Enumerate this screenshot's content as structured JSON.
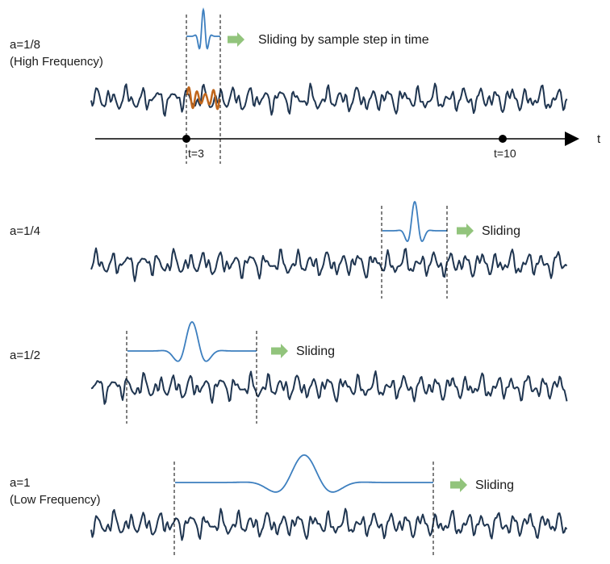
{
  "colors": {
    "signal": "#1f3550",
    "wavelet": "#3d7fbf",
    "highlight": "#c0661c",
    "arrow": "#92c47c",
    "axis": "#000000",
    "guide": "#000000"
  },
  "icons": {
    "arrow": "right-block-arrow-icon",
    "time_marker": "dot-marker-icon",
    "axis_arrow": "arrowhead-icon"
  },
  "axis": {
    "label": "t",
    "markers": [
      {
        "label": "t=3"
      },
      {
        "label": "t=10"
      }
    ]
  },
  "panels": [
    {
      "scale_label": "a=1/8",
      "scale_note": "(High Frequency)",
      "slide_label": "Sliding by sample step in time"
    },
    {
      "scale_label": "a=1/4",
      "scale_note": "",
      "slide_label": "Sliding"
    },
    {
      "scale_label": "a=1/2",
      "scale_note": "",
      "slide_label": "Sliding"
    },
    {
      "scale_label": "a=1",
      "scale_note": "(Low Frequency)",
      "slide_label": "Sliding"
    }
  ]
}
